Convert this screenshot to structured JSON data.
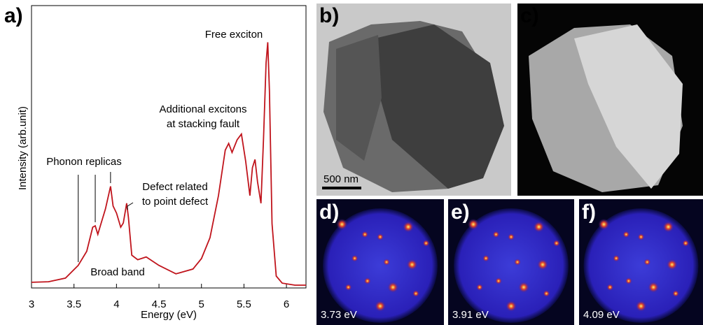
{
  "chart_data": {
    "type": "line",
    "panel_label": "a)",
    "xlabel": "Energy (eV)",
    "ylabel": "Intensity (arb.unit)",
    "x": [
      3.0,
      3.2,
      3.4,
      3.55,
      3.65,
      3.72,
      3.75,
      3.78,
      3.82,
      3.87,
      3.93,
      3.96,
      4.0,
      4.05,
      4.08,
      4.12,
      4.14,
      4.18,
      4.25,
      4.35,
      4.5,
      4.7,
      4.9,
      5.0,
      5.1,
      5.2,
      5.28,
      5.32,
      5.36,
      5.42,
      5.47,
      5.52,
      5.57,
      5.6,
      5.63,
      5.66,
      5.7,
      5.73,
      5.76,
      5.78,
      5.8,
      5.83,
      5.88,
      5.95,
      6.1,
      6.23
    ],
    "series": [
      {
        "color": "#c0141c",
        "values": [
          2,
          2.2,
          3.5,
          8,
          13,
          21.5,
          22,
          19,
          23,
          28,
          36,
          29,
          26.5,
          21.5,
          23,
          30,
          25,
          11.6,
          10,
          11,
          8,
          5,
          6.7,
          10.4,
          17.8,
          32.7,
          48.8,
          51.2,
          48,
          52.5,
          54.5,
          45,
          32.7,
          42.6,
          45.5,
          37.6,
          30,
          52.5,
          79.7,
          87,
          69.8,
          22.8,
          4.2,
          1.7,
          1,
          1
        ]
      }
    ],
    "xlim": [
      3,
      6.23
    ],
    "ylim": [
      0,
      100
    ],
    "xticks": [
      3,
      3.5,
      4,
      4.5,
      5,
      5.5,
      6
    ],
    "annotations": [
      "Free exciton",
      "Additional excitons",
      "at stacking fault",
      "Phonon replicas",
      "Defect related",
      "to point defect",
      "Broad band"
    ]
  },
  "panels": {
    "b": {
      "label": "b)",
      "scale_bar": "500 nm"
    },
    "c": {
      "label": "c)"
    },
    "d": {
      "label": "d)",
      "energy": "3.73 eV"
    },
    "e": {
      "label": "e)",
      "energy": "3.91 eV"
    },
    "f": {
      "label": "f)",
      "energy": "4.09 eV"
    }
  }
}
